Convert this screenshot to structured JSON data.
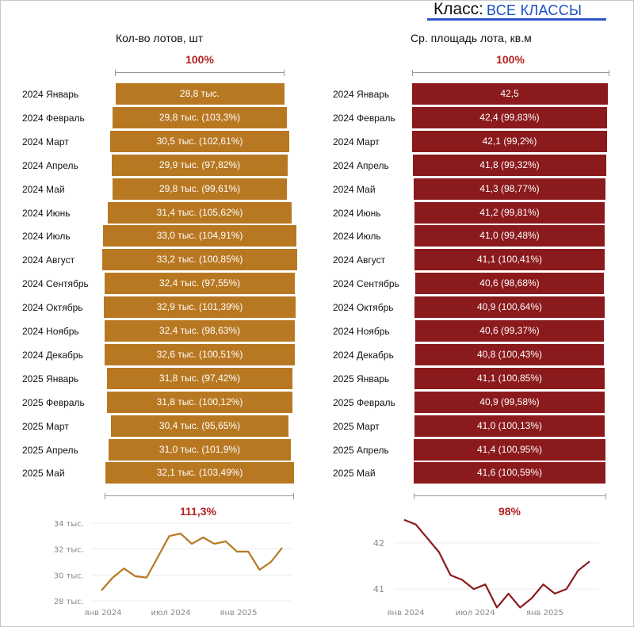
{
  "header": {
    "class_label": "Класс:",
    "class_value": "ВСЕ КЛАССЫ"
  },
  "colors": {
    "gold": "#b87822",
    "red": "#8b1a1d",
    "accent_blue": "#1a4fc4",
    "pct_red": "#b22222"
  },
  "chart_data": [
    {
      "type": "bar",
      "orientation": "funnel",
      "title": "Кол-во лотов, шт",
      "top_pct": "100%",
      "bottom_pct": "111,3%",
      "categories": [
        "2024 Январь",
        "2024 Февраль",
        "2024 Март",
        "2024 Апрель",
        "2024 Май",
        "2024 Июнь",
        "2024 Июль",
        "2024 Август",
        "2024 Сентябрь",
        "2024 Октябрь",
        "2024 Ноябрь",
        "2024 Декабрь",
        "2025 Январь",
        "2025 Февраль",
        "2025 Март",
        "2025 Апрель",
        "2025 Май"
      ],
      "values": [
        28.8,
        29.8,
        30.5,
        29.9,
        29.8,
        31.4,
        33.0,
        33.2,
        32.4,
        32.9,
        32.4,
        32.6,
        31.8,
        31.8,
        30.4,
        31.0,
        32.1
      ],
      "labels": [
        "28,8 тыс.",
        "29,8 тыс. (103,3%)",
        "30,5 тыс. (102,61%)",
        "29,9 тыс. (97,82%)",
        "29,8 тыс. (99,61%)",
        "31,4 тыс. (105,62%)",
        "33,0 тыс. (104,91%)",
        "33,2 тыс. (100,85%)",
        "32,4 тыс. (97,55%)",
        "32,9 тыс. (101,39%)",
        "32,4 тыс. (98,63%)",
        "32,6 тыс. (100,51%)",
        "31,8 тыс. (97,42%)",
        "31,8 тыс. (100,12%)",
        "30,4 тыс. (95,65%)",
        "31,0 тыс. (101,9%)",
        "32,1 тыс. (103,49%)"
      ],
      "unit": "тыс."
    },
    {
      "type": "bar",
      "orientation": "funnel",
      "title": "Ср. площадь лота, кв.м",
      "top_pct": "100%",
      "bottom_pct": "98%",
      "categories": [
        "2024 Январь",
        "2024 Февраль",
        "2024 Март",
        "2024 Апрель",
        "2024 Май",
        "2024 Июнь",
        "2024 Июль",
        "2024 Август",
        "2024 Сентябрь",
        "2024 Октябрь",
        "2024 Ноябрь",
        "2024 Декабрь",
        "2025 Январь",
        "2025 Февраль",
        "2025 Март",
        "2025 Апрель",
        "2025 Май"
      ],
      "values": [
        42.5,
        42.4,
        42.1,
        41.8,
        41.3,
        41.2,
        41.0,
        41.1,
        40.6,
        40.9,
        40.6,
        40.8,
        41.1,
        40.9,
        41.0,
        41.4,
        41.6
      ],
      "labels": [
        "42,5",
        "42,4 (99,83%)",
        "42,1 (99,2%)",
        "41,8 (99,32%)",
        "41,3 (98,77%)",
        "41,2 (99,81%)",
        "41,0 (99,48%)",
        "41,1 (100,41%)",
        "40,6 (98,68%)",
        "40,9 (100,64%)",
        "40,6 (99,37%)",
        "40,8 (100,43%)",
        "41,1 (100,85%)",
        "40,9 (99,58%)",
        "41,0 (100,13%)",
        "41,4 (100,95%)",
        "41,6 (100,59%)"
      ]
    },
    {
      "type": "line",
      "title": "",
      "series": [
        {
          "name": "Кол-во лотов",
          "values": [
            28.8,
            29.8,
            30.5,
            29.9,
            29.8,
            31.4,
            33.0,
            33.2,
            32.4,
            32.9,
            32.4,
            32.6,
            31.8,
            31.8,
            30.4,
            31.0,
            32.1
          ]
        }
      ],
      "ylim": [
        28,
        34
      ],
      "yticks": [
        28,
        30,
        32,
        34
      ],
      "ytick_labels": [
        "28 тыс.",
        "30 тыс.",
        "32 тыс.",
        "34 тыс."
      ],
      "xtick_labels": [
        "янв 2024",
        "июл 2024",
        "янв 2025"
      ],
      "xtick_index": [
        0,
        6,
        12
      ],
      "grid": true
    },
    {
      "type": "line",
      "title": "",
      "series": [
        {
          "name": "Ср. площадь лота",
          "values": [
            42.5,
            42.4,
            42.1,
            41.8,
            41.3,
            41.2,
            41.0,
            41.1,
            40.6,
            40.9,
            40.6,
            40.8,
            41.1,
            40.9,
            41.0,
            41.4,
            41.6
          ]
        }
      ],
      "ylim": [
        40.4,
        42.6
      ],
      "yticks": [
        41,
        42
      ],
      "ytick_labels": [
        "41",
        "42"
      ],
      "xtick_labels": [
        "янв 2024",
        "июл 2024",
        "янв 2025"
      ],
      "xtick_index": [
        0,
        6,
        12
      ],
      "grid": true
    }
  ]
}
